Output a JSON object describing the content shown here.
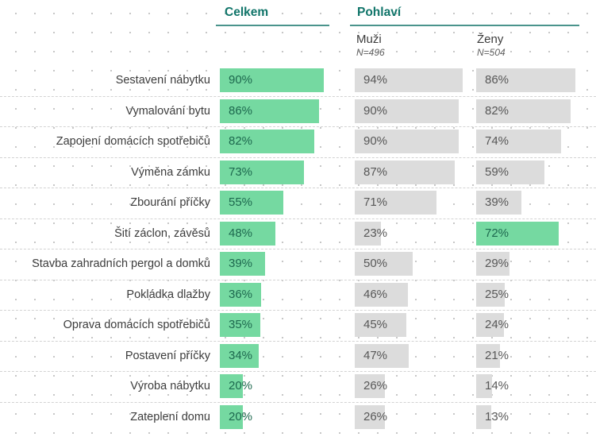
{
  "header": {
    "celkem_label": "Celkem",
    "pohlavi_label": "Pohlaví",
    "muzi_label": "Muži",
    "muzi_n": "N=496",
    "zeny_label": "Ženy",
    "zeny_n": "N=504"
  },
  "colors": {
    "accent_green": "#75d9a1",
    "bar_gray": "#dcdcdc",
    "header_teal": "#11756a",
    "underline_teal": "#4a948c",
    "value_text_green": "#1d684e",
    "value_text_gray": "#575757",
    "label_text": "#3c3c3c",
    "dashed_separator": "#d3d3d3",
    "dot_grid": "#c7c7c7"
  },
  "chart_data": {
    "type": "bar",
    "title": "",
    "orientation": "horizontal",
    "group_header": "Pohlaví",
    "value_suffix": "%",
    "xlim": [
      0,
      100
    ],
    "categories": [
      "Sestavení nábytku",
      "Vymalování bytu",
      "Zapojení domácích spotřebičů",
      "Výměna zámku",
      "Zbourání příčky",
      "Šití záclon, závěsů",
      "Stavba zahradních pergol a domků",
      "Pokládka dlažby",
      "Oprava domácích spotřebičů",
      "Postavení příčky",
      "Výroba nábytku",
      "Zateplení domu"
    ],
    "series": [
      {
        "name": "Celkem",
        "n": "",
        "values": [
          90,
          86,
          82,
          73,
          55,
          48,
          39,
          36,
          35,
          34,
          20,
          20
        ]
      },
      {
        "name": "Muži",
        "n": "N=496",
        "values": [
          94,
          90,
          90,
          87,
          71,
          23,
          50,
          46,
          45,
          47,
          26,
          26
        ]
      },
      {
        "name": "Ženy",
        "n": "N=504",
        "values": [
          86,
          82,
          74,
          59,
          39,
          72,
          29,
          25,
          24,
          21,
          14,
          13
        ]
      }
    ],
    "highlighted_cells": [
      {
        "series": "Ženy",
        "category": "Šití záclon, závěsů"
      }
    ],
    "legend_position": "none",
    "grid": "dotted-background"
  }
}
